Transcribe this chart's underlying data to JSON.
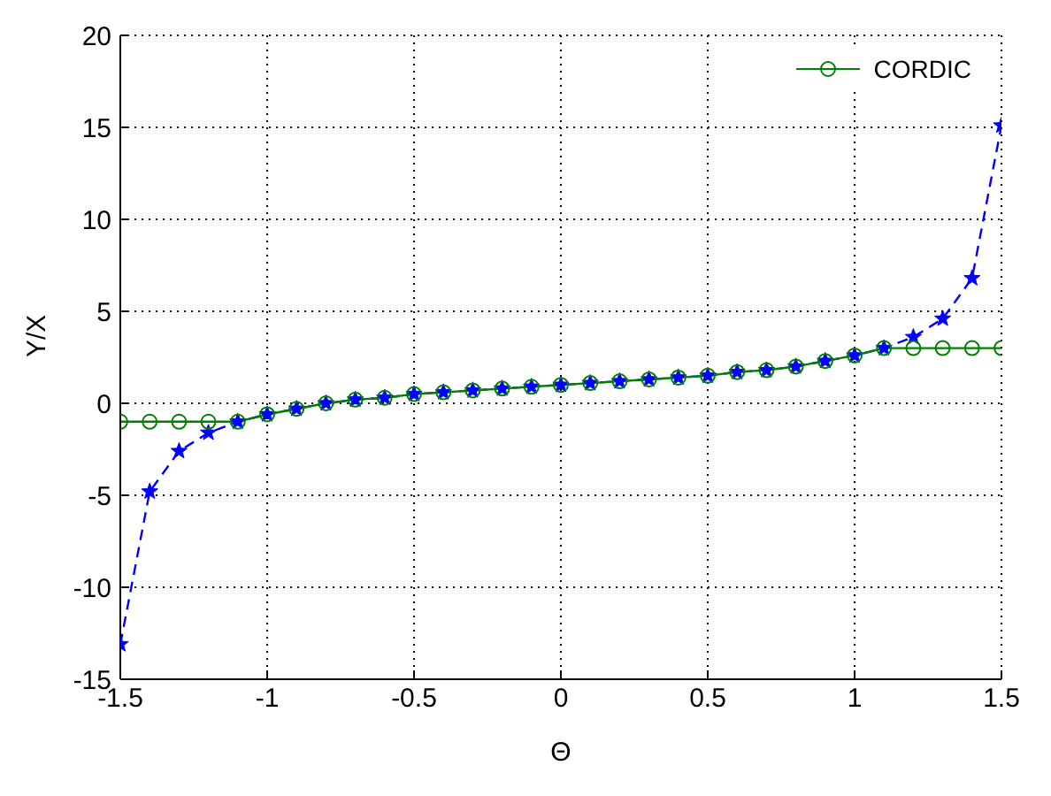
{
  "chart_data": {
    "type": "line",
    "xlabel": "Θ",
    "ylabel": "Y/X",
    "x": [
      -1.5,
      -1.4,
      -1.3,
      -1.2,
      -1.1,
      -1.0,
      -0.9,
      -0.8,
      -0.7,
      -0.6,
      -0.5,
      -0.4,
      -0.3,
      -0.2,
      -0.1,
      0,
      0.1,
      0.2,
      0.3,
      0.4,
      0.5,
      0.6,
      0.7,
      0.8,
      0.9,
      1.0,
      1.1,
      1.2,
      1.3,
      1.4,
      1.5
    ],
    "series": [
      {
        "color": "#0000ff",
        "marker": "star",
        "line_style": "dashed",
        "values": [
          -13.1,
          -4.8,
          -2.6,
          -1.6,
          -1.0,
          -0.6,
          -0.3,
          0.0,
          0.2,
          0.3,
          0.5,
          0.6,
          0.7,
          0.8,
          0.9,
          1.0,
          1.1,
          1.2,
          1.3,
          1.4,
          1.5,
          1.7,
          1.8,
          2.0,
          2.3,
          2.6,
          3.0,
          3.6,
          4.6,
          6.8,
          15.1
        ]
      },
      {
        "name": "CORDIC",
        "color": "#008000",
        "marker": "circle",
        "line_style": "solid",
        "values": [
          -1.0,
          -1.0,
          -1.0,
          -1.0,
          -1.0,
          -0.6,
          -0.3,
          0.0,
          0.2,
          0.3,
          0.5,
          0.6,
          0.7,
          0.8,
          0.9,
          1.0,
          1.1,
          1.2,
          1.3,
          1.4,
          1.5,
          1.7,
          1.8,
          2.0,
          2.3,
          2.6,
          3.0,
          3.0,
          3.0,
          3.0,
          3.0
        ]
      }
    ],
    "xlim": [
      -1.5,
      1.5
    ],
    "xticks": [
      -1.5,
      -1,
      -0.5,
      0,
      0.5,
      1,
      1.5
    ],
    "ylim": [
      -15,
      20
    ],
    "yticks": [
      -15,
      -10,
      -5,
      0,
      5,
      10,
      15,
      20
    ],
    "grid": true,
    "legend": "top right"
  }
}
